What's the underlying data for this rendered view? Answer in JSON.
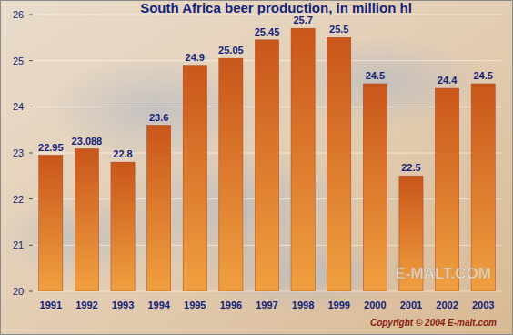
{
  "chart_data": {
    "type": "bar",
    "title": "South Africa beer production, in million hl",
    "categories": [
      "1991",
      "1992",
      "1993",
      "1994",
      "1995",
      "1996",
      "1997",
      "1998",
      "1999",
      "2000",
      "2001",
      "2002",
      "2003"
    ],
    "values": [
      22.95,
      23.088,
      22.8,
      23.6,
      24.9,
      25.05,
      25.45,
      25.7,
      25.5,
      24.5,
      22.5,
      24.4,
      24.5
    ],
    "color": "#c9561b",
    "ylim": [
      20,
      26
    ],
    "yticks": [
      20,
      21,
      22,
      23,
      24,
      25,
      26
    ],
    "grid": true,
    "data_labels": true,
    "annotations": [
      "E-MALT.COM",
      "Copyright © 2004 E-malt.com"
    ]
  }
}
